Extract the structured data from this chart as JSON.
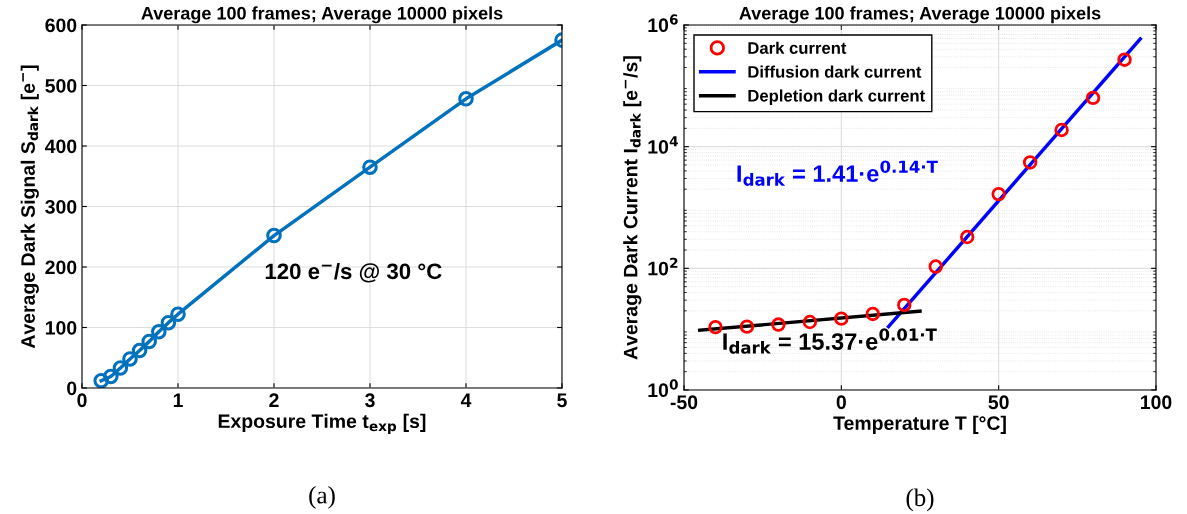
{
  "chart_data": [
    {
      "type": "line",
      "title": "Average 100 frames; Average 10000 pixels",
      "xlabel": "Exposure Time t$_{exp}$ [s]",
      "ylabel": "Average Dark Signal S$_{dark}$ [e$^{−}$]",
      "x": [
        0.2,
        0.3,
        0.4,
        0.5,
        0.6,
        0.7,
        0.8,
        0.9,
        1,
        2,
        3,
        4,
        5
      ],
      "series": [
        {
          "color": "#0072bd",
          "values": [
            12,
            19,
            33,
            48,
            62,
            77,
            93,
            108,
            122,
            252,
            365,
            478,
            575
          ]
        }
      ],
      "xlim": [
        0,
        5
      ],
      "xticks": [
        0,
        1,
        2,
        3,
        4,
        5
      ],
      "ylim": [
        0,
        600
      ],
      "yticks": [
        0,
        100,
        200,
        300,
        400,
        500,
        600
      ],
      "grid": true,
      "marker": "circle",
      "line_style": "solid",
      "annotations": [
        "120 e$^{−}$/s @ 30 °C",
        "(a)"
      ]
    },
    {
      "type": "scatter",
      "title": "Average 100 frames; Average 10000 pixels",
      "xlabel": "Temperature T [°C]",
      "ylabel": "Average Dark Current I$_{dark}$ [e$^{−}$/s]",
      "x": [
        -40,
        -30,
        -20,
        -10,
        0,
        10,
        20,
        30,
        40,
        50,
        60,
        70,
        80,
        90
      ],
      "series": [
        {
          "name": "Dark current",
          "type": "scatter",
          "color": "#ff0000",
          "marker": "circle",
          "values": [
            10.8,
            11,
            11.9,
            13.1,
            14.9,
            17.8,
            25,
            107,
            327,
            1660,
            5500,
            18800,
            63500,
            269000
          ]
        },
        {
          "name": "Diffusion dark current",
          "type": "line",
          "color": "#0000ff",
          "x": [
            15,
            95
          ],
          "values": [
            11,
            590000
          ]
        },
        {
          "name": "Depletion dark current",
          "type": "line",
          "color": "#000000",
          "x": [
            -45,
            25
          ],
          "values": [
            9.6,
            19.7
          ]
        }
      ],
      "log": "y",
      "xlim": [
        -50,
        100
      ],
      "xticks": [
        -50,
        0,
        50,
        100
      ],
      "ylim": [
        1,
        1000000
      ],
      "yticks": [
        {
          "value": 1,
          "label": "10$^{0}$"
        },
        {
          "value": 100,
          "label": "10$^{2}$"
        },
        {
          "value": 10000,
          "label": "10$^{4}$"
        },
        {
          "value": 1000000,
          "label": "10$^{6}$"
        }
      ],
      "grid": true,
      "legend": "top left",
      "annotations": [
        "I$_{dark}$ = 1.41·e$^{0.14·T}$",
        "I$_{dark}$ = 15.37·e$^{0.01·T}$",
        "(b)"
      ]
    }
  ]
}
